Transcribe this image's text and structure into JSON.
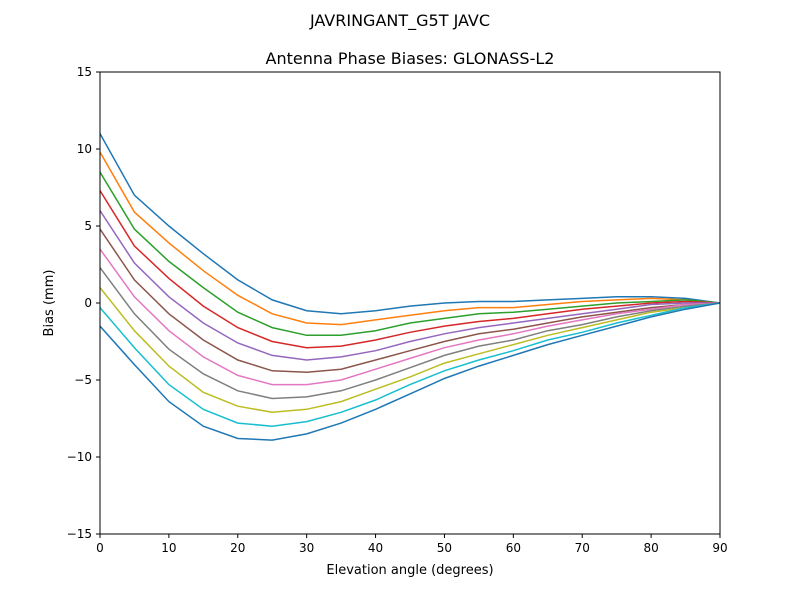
{
  "chart_data": {
    "type": "line",
    "suptitle": "JAVRINGANT_G5T  JAVC",
    "title": "Antenna Phase Biases: GLONASS-L2",
    "xlabel": "Elevation angle (degrees)",
    "ylabel": "Bias (mm)",
    "xlim": [
      0,
      90
    ],
    "ylim": [
      -15,
      15
    ],
    "xticks": [
      0,
      10,
      20,
      30,
      40,
      50,
      60,
      70,
      80,
      90
    ],
    "yticks": [
      -15,
      -10,
      -5,
      0,
      5,
      10,
      15
    ],
    "ytick_labels": [
      "−15",
      "−10",
      "−5",
      "0",
      "5",
      "10",
      "15"
    ],
    "grid": false,
    "x": [
      0,
      5,
      10,
      15,
      20,
      25,
      30,
      35,
      40,
      45,
      50,
      55,
      60,
      65,
      70,
      75,
      80,
      85,
      90
    ],
    "colors": [
      "#1f77b4",
      "#ff7f0e",
      "#2ca02c",
      "#d62728",
      "#9467bd",
      "#8c564b",
      "#e377c2",
      "#7f7f7f",
      "#bcbd22",
      "#17becf"
    ],
    "series": [
      {
        "values": [
          11,
          7,
          5,
          3.2,
          1.5,
          0.2,
          -0.5,
          -0.7,
          -0.5,
          -0.2,
          0,
          0.1,
          0.1,
          0.2,
          0.3,
          0.4,
          0.4,
          0.3,
          0
        ]
      },
      {
        "values": [
          9.8,
          5.9,
          3.9,
          2.1,
          0.5,
          -0.7,
          -1.3,
          -1.4,
          -1.1,
          -0.8,
          -0.5,
          -0.3,
          -0.3,
          -0.1,
          0.1,
          0.2,
          0.3,
          0.2,
          0
        ]
      },
      {
        "values": [
          8.5,
          4.8,
          2.7,
          1.0,
          -0.6,
          -1.6,
          -2.1,
          -2.1,
          -1.8,
          -1.3,
          -1.0,
          -0.7,
          -0.6,
          -0.4,
          -0.2,
          0.0,
          0.1,
          0.2,
          0
        ]
      },
      {
        "values": [
          7.3,
          3.7,
          1.6,
          -0.2,
          -1.6,
          -2.5,
          -2.9,
          -2.8,
          -2.4,
          -1.9,
          -1.5,
          -1.2,
          -1.0,
          -0.7,
          -0.4,
          -0.2,
          0.0,
          0.1,
          0
        ]
      },
      {
        "values": [
          6.0,
          2.6,
          0.4,
          -1.3,
          -2.6,
          -3.4,
          -3.7,
          -3.5,
          -3.1,
          -2.5,
          -2.0,
          -1.6,
          -1.3,
          -1.0,
          -0.7,
          -0.4,
          -0.1,
          0.0,
          0
        ]
      },
      {
        "values": [
          4.8,
          1.5,
          -0.7,
          -2.4,
          -3.7,
          -4.4,
          -4.5,
          -4.3,
          -3.7,
          -3.1,
          -2.5,
          -2.0,
          -1.7,
          -1.3,
          -0.9,
          -0.6,
          -0.3,
          -0.1,
          0
        ]
      },
      {
        "values": [
          3.5,
          0.4,
          -1.8,
          -3.5,
          -4.7,
          -5.3,
          -5.3,
          -5.0,
          -4.3,
          -3.6,
          -2.9,
          -2.4,
          -2.0,
          -1.5,
          -1.1,
          -0.7,
          -0.4,
          -0.1,
          0
        ]
      },
      {
        "values": [
          2.3,
          -0.7,
          -3.0,
          -4.6,
          -5.7,
          -6.2,
          -6.1,
          -5.7,
          -5.0,
          -4.2,
          -3.4,
          -2.8,
          -2.4,
          -1.8,
          -1.4,
          -0.9,
          -0.5,
          -0.2,
          0
        ]
      },
      {
        "values": [
          1.0,
          -1.8,
          -4.1,
          -5.8,
          -6.7,
          -7.1,
          -6.9,
          -6.4,
          -5.6,
          -4.8,
          -3.9,
          -3.3,
          -2.7,
          -2.1,
          -1.6,
          -1.1,
          -0.6,
          -0.3,
          0
        ]
      },
      {
        "values": [
          -0.3,
          -2.9,
          -5.3,
          -6.9,
          -7.8,
          -8.0,
          -7.7,
          -7.1,
          -6.3,
          -5.3,
          -4.4,
          -3.7,
          -3.1,
          -2.4,
          -1.9,
          -1.3,
          -0.8,
          -0.3,
          0
        ]
      },
      {
        "values": [
          -1.5,
          -4,
          -6.4,
          -8,
          -8.8,
          -8.9,
          -8.5,
          -7.8,
          -6.9,
          -5.9,
          -4.9,
          -4.1,
          -3.4,
          -2.7,
          -2.1,
          -1.5,
          -0.9,
          -0.4,
          0
        ]
      }
    ]
  }
}
